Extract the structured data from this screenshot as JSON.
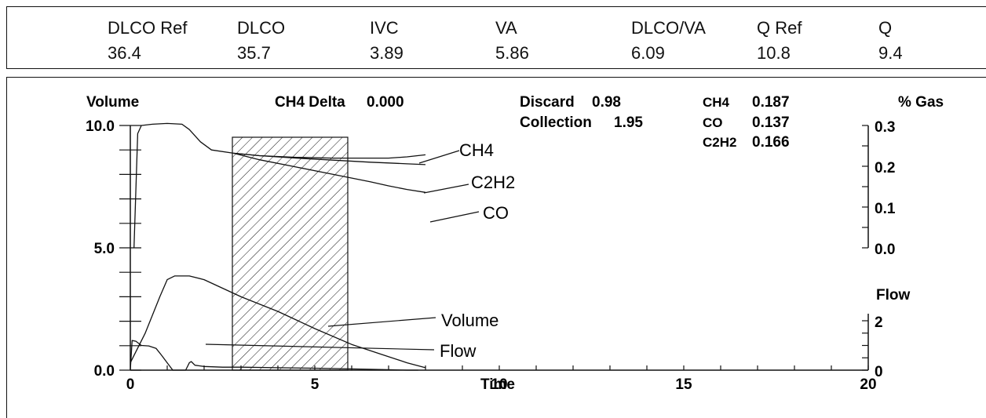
{
  "summary": {
    "items": [
      {
        "label": "DLCO Ref",
        "value": "36.4"
      },
      {
        "label": "DLCO",
        "value": "35.7"
      },
      {
        "label": "IVC",
        "value": "3.89"
      },
      {
        "label": "VA",
        "value": "5.86"
      },
      {
        "label": "DLCO/VA",
        "value": "6.09"
      },
      {
        "label": "Q Ref",
        "value": "10.8"
      },
      {
        "label": "Q",
        "value": "9.4"
      }
    ]
  },
  "info": {
    "ch4_delta_label": "CH4 Delta",
    "ch4_delta_value": "0.000",
    "discard_label": "Discard",
    "discard_value": "0.98",
    "collection_label": "Collection",
    "collection_value": "1.95",
    "gases": [
      {
        "name": "CH4",
        "value": "0.187"
      },
      {
        "name": "CO",
        "value": "0.137"
      },
      {
        "name": "C2H2",
        "value": "0.166"
      }
    ]
  },
  "chart_data": {
    "type": "line",
    "xlabel": "Time",
    "x_ticks": [
      "0",
      "5",
      "10",
      "15",
      "20"
    ],
    "xlim": [
      0,
      20
    ],
    "left_axis": {
      "label": "Volume",
      "ticks": [
        "10.0",
        "5.0",
        "0.0"
      ],
      "range": [
        0,
        10
      ]
    },
    "right_axis_gas": {
      "label": "% Gas",
      "ticks": [
        "0.3",
        "0.2",
        "0.1",
        "0.0"
      ],
      "range": [
        0,
        0.3
      ]
    },
    "right_axis_flow": {
      "label": "Flow",
      "ticks": [
        "2",
        "0"
      ],
      "range": [
        0,
        2
      ]
    },
    "collection_window": {
      "x_start": 2.8,
      "x_end": 5.9
    },
    "series": [
      {
        "name": "CH4",
        "axis": "gas",
        "x": [
          0.1,
          0.2,
          0.3,
          0.6,
          1.0,
          1.4,
          1.6,
          1.9,
          2.2,
          2.8,
          3.5,
          4.5,
          5.5,
          6.5,
          7.0,
          7.5,
          8.0
        ],
        "y": [
          0.0,
          0.28,
          0.3,
          0.303,
          0.305,
          0.303,
          0.29,
          0.26,
          0.24,
          0.232,
          0.226,
          0.222,
          0.22,
          0.22,
          0.22,
          0.223,
          0.228
        ]
      },
      {
        "name": "C2H2",
        "axis": "gas",
        "x": [
          2.8,
          3.5,
          4.5,
          5.5,
          6.5,
          7.0,
          7.5,
          8.0
        ],
        "y": [
          0.232,
          0.226,
          0.22,
          0.215,
          0.21,
          0.208,
          0.206,
          0.204
        ]
      },
      {
        "name": "CO",
        "axis": "gas",
        "x": [
          2.8,
          3.5,
          4.5,
          5.5,
          6.5,
          7.0,
          7.5,
          8.0
        ],
        "y": [
          0.232,
          0.216,
          0.198,
          0.18,
          0.162,
          0.152,
          0.143,
          0.136
        ]
      },
      {
        "name": "Volume",
        "axis": "volume",
        "x": [
          0.0,
          0.4,
          0.8,
          1.0,
          1.2,
          1.6,
          2.0,
          3.0,
          4.0,
          5.0,
          6.0,
          6.8,
          7.5,
          8.0
        ],
        "y": [
          0.3,
          1.5,
          3.0,
          3.7,
          3.85,
          3.85,
          3.7,
          3.0,
          2.4,
          1.7,
          1.05,
          0.65,
          0.3,
          0.1
        ]
      },
      {
        "name": "Flow",
        "axis": "flow",
        "x": [
          0.0,
          0.05,
          0.15,
          0.3,
          0.5,
          0.7,
          0.85,
          1.0,
          1.15,
          1.3,
          1.5,
          1.6,
          1.65,
          1.75,
          2.0,
          2.5,
          3.0,
          4.0,
          5.0,
          6.0,
          7.0,
          7.5,
          7.8
        ],
        "y": [
          0.0,
          1.2,
          1.17,
          1.0,
          0.98,
          0.88,
          0.6,
          0.3,
          0.0,
          0.0,
          0.0,
          0.3,
          0.35,
          0.2,
          0.15,
          0.12,
          0.12,
          0.1,
          0.08,
          0.05,
          0.02,
          0.0,
          0.0
        ]
      }
    ]
  }
}
